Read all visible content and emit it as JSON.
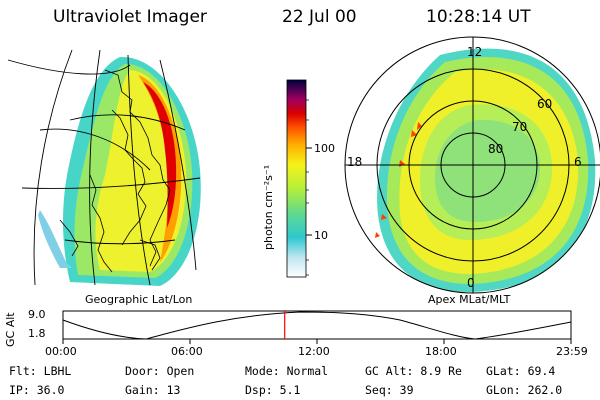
{
  "header": {
    "instrument": "Ultraviolet Imager",
    "date": "22 Jul 00",
    "time": "10:28:14 UT"
  },
  "geo_map": {
    "caption": "Geographic Lat/Lon"
  },
  "polar_map": {
    "caption": "Apex MLat/MLT",
    "mlt_labels": {
      "top": "12",
      "left": "18",
      "right": "6",
      "bottom": "0"
    },
    "lat_labels": [
      "60",
      "70",
      "80"
    ]
  },
  "colorbar": {
    "unit_label": "photon cm⁻²s⁻¹",
    "ticks": [
      "100",
      "10"
    ]
  },
  "altitude_plot": {
    "ylabel": "GC Alt",
    "y_ticks": [
      "9.0",
      "1.8"
    ],
    "x_ticks": [
      "00:00",
      "06:00",
      "12:00",
      "18:00",
      "23:59"
    ],
    "marker_time": "10:28",
    "marker_color": "#ff0000"
  },
  "info": {
    "row1": [
      {
        "key": "Flt:",
        "value": "LBHL"
      },
      {
        "key": "Door:",
        "value": "Open"
      },
      {
        "key": "Mode:",
        "value": "Normal"
      },
      {
        "key": "GC Alt:",
        "value": "8.9 Re"
      },
      {
        "key": "GLat:",
        "value": "69.4"
      }
    ],
    "row2": [
      {
        "key": "IP:",
        "value": "36.0"
      },
      {
        "key": "Gain:",
        "value": "13"
      },
      {
        "key": "Dsp:",
        "value": "5.1"
      },
      {
        "key": "Seq:",
        "value": "39"
      },
      {
        "key": "GLon:",
        "value": "262.0"
      }
    ]
  }
}
